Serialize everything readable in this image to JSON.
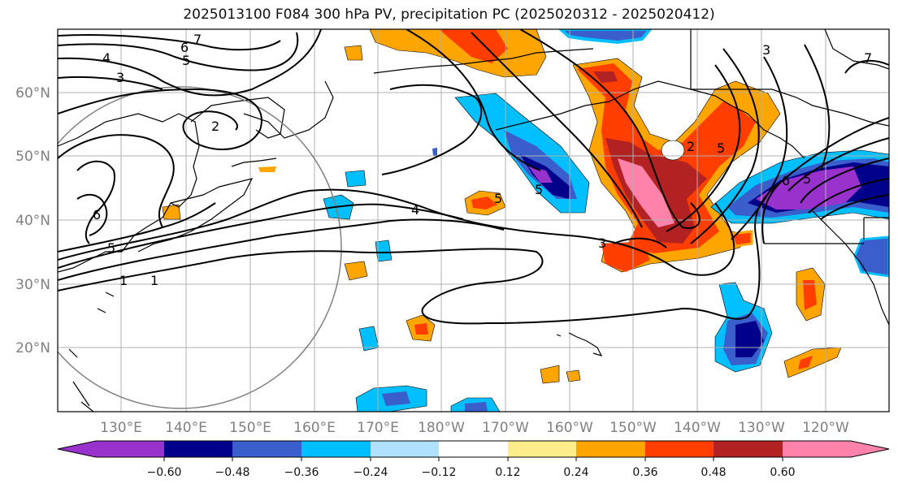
{
  "title": "2025013100 F084 300 hPa PV, precipitation PC (2025020312 - 2025020412)",
  "colors": {
    "purple": "#9932CC",
    "navy": "#00008B",
    "royal": "#3A5FCD",
    "sky": "#00BFFF",
    "light_blue": "#B0E2FF",
    "white": "#FFFFFF",
    "light_yellow": "#FFEC8B",
    "orange": "#FFA500",
    "red_orange": "#FF3E00",
    "firebrick": "#B22222",
    "pink": "#FF82AB"
  },
  "latitude_labels": [
    "60°N",
    "50°N",
    "40°N",
    "30°N",
    "20°N"
  ],
  "longitude_labels": [
    "130°E",
    "140°E",
    "150°E",
    "160°E",
    "170°E",
    "180°W",
    "170°W",
    "160°W",
    "150°W",
    "140°W",
    "130°W",
    "120°W"
  ],
  "colorbar": {
    "ticks": [
      "−0.60",
      "−0.48",
      "−0.36",
      "−0.24",
      "−0.12",
      "0.12",
      "0.24",
      "0.36",
      "0.48",
      "0.60"
    ],
    "extend": "both"
  },
  "contour_labels": [
    "7",
    "6",
    "5",
    "4",
    "3",
    "2",
    "5",
    "1",
    "1",
    "4",
    "5",
    "6",
    "5",
    "3",
    "3",
    "2",
    "5",
    "7",
    "6",
    "5"
  ]
}
